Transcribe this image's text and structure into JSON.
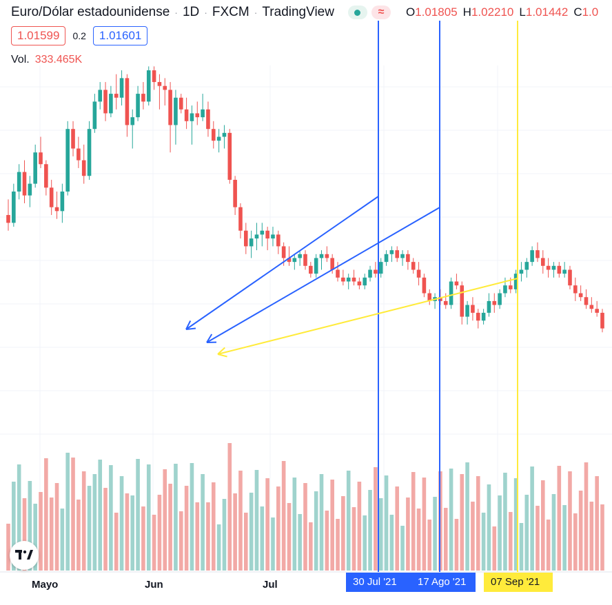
{
  "header": {
    "symbol": "Euro/Dólar estadounidense",
    "interval": "1D",
    "exchange": "FXCM",
    "provider": "TradingView",
    "ohlc": {
      "o_label": "O",
      "o": "1.01805",
      "h_label": "H",
      "h": "1.02210",
      "l_label": "L",
      "l": "1.01442",
      "c_label": "C",
      "c": "1.0"
    }
  },
  "prices": {
    "bid": "1.01599",
    "spread": "0.2",
    "ask": "1.01601"
  },
  "volume": {
    "label": "Vol.",
    "value": "333.465K"
  },
  "x_axis": {
    "labels": [
      "Mayo",
      "Jun",
      "Jul"
    ],
    "markers": [
      "30 Jul '21",
      "17 Ago '21",
      "07 Sep '21"
    ]
  },
  "colors": {
    "up": "#26a69a",
    "down": "#ef5350",
    "up_vol": "#9fd3cd",
    "down_vol": "#f2a9a6",
    "blue": "#2962ff",
    "yellow": "#ffeb3b",
    "grid": "#f0f3fa"
  },
  "icons": {
    "logo": "tradingview-logo-icon",
    "live": "market-open-dot-icon",
    "delay": "delayed-data-icon"
  },
  "chart_data": {
    "type": "candlestick",
    "candles": [
      [
        1.072,
        1.076,
        1.068,
        1.07
      ],
      [
        1.07,
        1.08,
        1.069,
        1.078
      ],
      [
        1.078,
        1.085,
        1.076,
        1.083
      ],
      [
        1.083,
        1.086,
        1.075,
        1.077
      ],
      [
        1.077,
        1.082,
        1.074,
        1.08
      ],
      [
        1.08,
        1.09,
        1.079,
        1.088
      ],
      [
        1.088,
        1.092,
        1.084,
        1.085
      ],
      [
        1.085,
        1.086,
        1.077,
        1.079
      ],
      [
        1.079,
        1.081,
        1.072,
        1.074
      ],
      [
        1.074,
        1.078,
        1.071,
        1.073
      ],
      [
        1.073,
        1.08,
        1.07,
        1.078
      ],
      [
        1.078,
        1.096,
        1.077,
        1.094
      ],
      [
        1.094,
        1.096,
        1.087,
        1.089
      ],
      [
        1.089,
        1.092,
        1.084,
        1.086
      ],
      [
        1.086,
        1.09,
        1.08,
        1.082
      ],
      [
        1.082,
        1.096,
        1.081,
        1.094
      ],
      [
        1.094,
        1.103,
        1.093,
        1.101
      ],
      [
        1.101,
        1.106,
        1.099,
        1.104
      ],
      [
        1.104,
        1.106,
        1.096,
        1.098
      ],
      [
        1.098,
        1.105,
        1.097,
        1.103
      ],
      [
        1.103,
        1.108,
        1.099,
        1.102
      ],
      [
        1.102,
        1.109,
        1.1,
        1.107
      ],
      [
        1.107,
        1.108,
        1.092,
        1.095
      ],
      [
        1.095,
        1.099,
        1.089,
        1.097
      ],
      [
        1.097,
        1.105,
        1.096,
        1.103
      ],
      [
        1.103,
        1.106,
        1.099,
        1.101
      ],
      [
        1.101,
        1.11,
        1.1,
        1.109
      ],
      [
        1.109,
        1.11,
        1.104,
        1.106
      ],
      [
        1.106,
        1.108,
        1.099,
        1.105
      ],
      [
        1.105,
        1.107,
        1.1,
        1.104
      ],
      [
        1.104,
        1.106,
        1.088,
        1.095
      ],
      [
        1.095,
        1.104,
        1.09,
        1.102
      ],
      [
        1.102,
        1.103,
        1.098,
        1.099
      ],
      [
        1.099,
        1.102,
        1.094,
        1.096
      ],
      [
        1.096,
        1.1,
        1.09,
        1.098
      ],
      [
        1.098,
        1.101,
        1.095,
        1.097
      ],
      [
        1.097,
        1.103,
        1.096,
        1.099
      ],
      [
        1.099,
        1.101,
        1.092,
        1.094
      ],
      [
        1.094,
        1.096,
        1.089,
        1.091
      ],
      [
        1.091,
        1.094,
        1.088,
        1.092
      ],
      [
        1.092,
        1.095,
        1.089,
        1.093
      ],
      [
        1.093,
        1.094,
        1.08,
        1.081
      ],
      [
        1.081,
        1.082,
        1.072,
        1.074
      ],
      [
        1.074,
        1.075,
        1.066,
        1.068
      ],
      [
        1.068,
        1.07,
        1.062,
        1.064
      ],
      [
        1.064,
        1.068,
        1.061,
        1.066
      ],
      [
        1.066,
        1.07,
        1.063,
        1.067
      ],
      [
        1.067,
        1.07,
        1.064,
        1.068
      ],
      [
        1.068,
        1.069,
        1.063,
        1.066
      ],
      [
        1.066,
        1.069,
        1.064,
        1.067
      ],
      [
        1.067,
        1.068,
        1.062,
        1.064
      ],
      [
        1.064,
        1.065,
        1.059,
        1.061
      ],
      [
        1.061,
        1.064,
        1.059,
        1.06
      ],
      [
        1.06,
        1.062,
        1.058,
        1.061
      ],
      [
        1.061,
        1.063,
        1.059,
        1.062
      ],
      [
        1.062,
        1.063,
        1.058,
        1.059
      ],
      [
        1.059,
        1.06,
        1.056,
        1.057
      ],
      [
        1.057,
        1.062,
        1.056,
        1.061
      ],
      [
        1.061,
        1.063,
        1.058,
        1.062
      ],
      [
        1.062,
        1.064,
        1.06,
        1.061
      ],
      [
        1.061,
        1.062,
        1.057,
        1.058
      ],
      [
        1.058,
        1.06,
        1.055,
        1.056
      ],
      [
        1.056,
        1.058,
        1.054,
        1.055
      ],
      [
        1.055,
        1.057,
        1.053,
        1.056
      ],
      [
        1.056,
        1.058,
        1.054,
        1.055
      ],
      [
        1.055,
        1.056,
        1.053,
        1.054
      ],
      [
        1.054,
        1.057,
        1.053,
        1.056
      ],
      [
        1.056,
        1.059,
        1.055,
        1.058
      ],
      [
        1.058,
        1.06,
        1.056,
        1.057
      ],
      [
        1.057,
        1.061,
        1.056,
        1.06
      ],
      [
        1.06,
        1.063,
        1.059,
        1.062
      ],
      [
        1.062,
        1.064,
        1.06,
        1.063
      ],
      [
        1.063,
        1.064,
        1.06,
        1.061
      ],
      [
        1.061,
        1.063,
        1.059,
        1.062
      ],
      [
        1.062,
        1.063,
        1.058,
        1.06
      ],
      [
        1.06,
        1.061,
        1.057,
        1.058
      ],
      [
        1.058,
        1.06,
        1.054,
        1.056
      ],
      [
        1.056,
        1.057,
        1.051,
        1.052
      ],
      [
        1.052,
        1.053,
        1.049,
        1.05
      ],
      [
        1.05,
        1.052,
        1.048,
        1.051
      ],
      [
        1.051,
        1.053,
        1.049,
        1.05
      ],
      [
        1.05,
        1.052,
        1.048,
        1.049
      ],
      [
        1.049,
        1.056,
        1.048,
        1.055
      ],
      [
        1.055,
        1.057,
        1.053,
        1.054
      ],
      [
        1.054,
        1.055,
        1.044,
        1.046
      ],
      [
        1.046,
        1.05,
        1.044,
        1.049
      ],
      [
        1.049,
        1.051,
        1.045,
        1.047
      ],
      [
        1.047,
        1.048,
        1.043,
        1.045
      ],
      [
        1.045,
        1.048,
        1.044,
        1.047
      ],
      [
        1.047,
        1.052,
        1.046,
        1.05
      ],
      [
        1.05,
        1.052,
        1.047,
        1.049
      ],
      [
        1.049,
        1.053,
        1.048,
        1.052
      ],
      [
        1.052,
        1.056,
        1.051,
        1.054
      ],
      [
        1.054,
        1.056,
        1.052,
        1.053
      ],
      [
        1.053,
        1.058,
        1.052,
        1.057
      ],
      [
        1.057,
        1.06,
        1.055,
        1.058
      ],
      [
        1.058,
        1.061,
        1.056,
        1.06
      ],
      [
        1.06,
        1.064,
        1.059,
        1.063
      ],
      [
        1.063,
        1.065,
        1.06,
        1.061
      ],
      [
        1.061,
        1.063,
        1.057,
        1.059
      ],
      [
        1.059,
        1.061,
        1.056,
        1.058
      ],
      [
        1.058,
        1.06,
        1.056,
        1.059
      ],
      [
        1.059,
        1.06,
        1.056,
        1.057
      ],
      [
        1.057,
        1.06,
        1.056,
        1.058
      ],
      [
        1.058,
        1.059,
        1.053,
        1.054
      ],
      [
        1.054,
        1.056,
        1.05,
        1.052
      ],
      [
        1.052,
        1.054,
        1.05,
        1.051
      ],
      [
        1.051,
        1.053,
        1.048,
        1.049
      ],
      [
        1.049,
        1.051,
        1.047,
        1.048
      ],
      [
        1.048,
        1.05,
        1.046,
        1.047
      ],
      [
        1.047,
        1.048,
        1.042,
        1.043
      ]
    ],
    "volume_source": "bars mirror candle direction"
  }
}
